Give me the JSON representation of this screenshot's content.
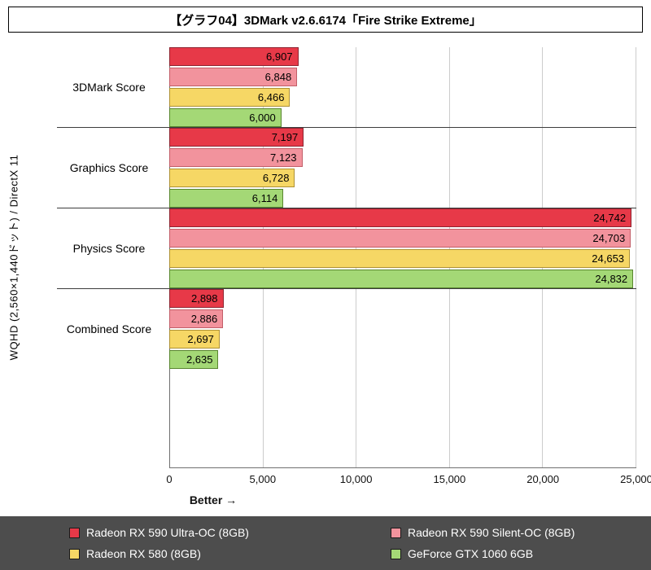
{
  "title": "【グラフ04】3DMark v2.6.6174「Fire Strike Extreme」",
  "chart_data": {
    "type": "bar",
    "orientation": "horizontal",
    "title": "【グラフ04】3DMark v2.6.6174「Fire Strike Extreme」",
    "categories": [
      "3DMark Score",
      "Graphics Score",
      "Physics Score",
      "Combined Score"
    ],
    "series": [
      {
        "name": "Radeon RX 590 Ultra-OC (8GB)",
        "color": "#e73948",
        "border": "#8e2330",
        "values": [
          6907,
          7197,
          24742,
          2898
        ]
      },
      {
        "name": "Radeon RX 590 Silent-OC (8GB)",
        "color": "#f2939d",
        "border": "#c25e68",
        "values": [
          6848,
          7123,
          24703,
          2886
        ]
      },
      {
        "name": "Radeon RX 580 (8GB)",
        "color": "#f6d765",
        "border": "#ae9134",
        "values": [
          6466,
          6728,
          24653,
          2697
        ]
      },
      {
        "name": "GeForce GTX 1060 6GB",
        "color": "#a4d876",
        "border": "#59862f",
        "values": [
          6000,
          6114,
          24832,
          2635
        ]
      }
    ],
    "xlim": [
      0,
      25000
    ],
    "x_ticks": [
      0,
      5000,
      10000,
      15000,
      20000,
      25000
    ],
    "xlabel": "Better →",
    "ylabel": "WQHD (2,560×1,440ドット) / DirectX 11",
    "value_labels": true,
    "grid": "vertical",
    "legend_position": "bottom",
    "legend_background": "#4d4d4d"
  }
}
